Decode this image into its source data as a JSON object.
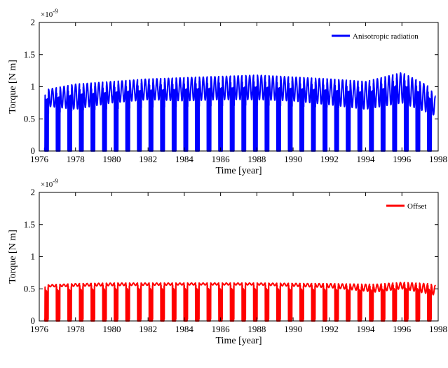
{
  "chart_data": [
    {
      "type": "line",
      "xlabel": "Time [year]",
      "ylabel": "Torque  [N m]",
      "exponent_label": "×10",
      "exponent_value": "-9",
      "xlim": [
        1976,
        1998
      ],
      "ylim": [
        0,
        2
      ],
      "xticks": [
        "1976",
        "1978",
        "1980",
        "1982",
        "1984",
        "1986",
        "1988",
        "1990",
        "1992",
        "1994",
        "1996",
        "1998"
      ],
      "yticks": [
        "0",
        "0.5",
        "1",
        "1.5",
        "2"
      ],
      "legend_placement": "top-right",
      "grid": false,
      "series": [
        {
          "name": "Anisotropic radiation",
          "color": "#0000ff",
          "start": 1976.3,
          "end": 1997.85,
          "period_years": 0.64,
          "zero_dip_fraction": 0.33,
          "envelope": {
            "x": [
              1976.3,
              1978,
              1980,
              1982,
              1984,
              1986,
              1988,
              1990,
              1992,
              1994,
              1996,
              1997.4,
              1997.85
            ],
            "max": [
              0.95,
              1.04,
              1.08,
              1.12,
              1.14,
              1.16,
              1.18,
              1.15,
              1.12,
              1.08,
              1.22,
              1.02,
              0.85
            ],
            "min": [
              0.7,
              0.65,
              0.75,
              0.8,
              0.78,
              0.8,
              0.8,
              0.78,
              0.72,
              0.65,
              0.75,
              0.6,
              0.55
            ]
          }
        }
      ]
    },
    {
      "type": "line",
      "xlabel": "Time [year]",
      "ylabel": "Torque  [N m]",
      "exponent_label": "×10",
      "exponent_value": "-9",
      "xlim": [
        1976,
        1998
      ],
      "ylim": [
        0,
        2
      ],
      "xticks": [
        "1976",
        "1978",
        "1980",
        "1982",
        "1984",
        "1986",
        "1988",
        "1990",
        "1992",
        "1994",
        "1996",
        "1998"
      ],
      "yticks": [
        "0",
        "0.5",
        "1",
        "1.5",
        "2"
      ],
      "legend_placement": "top-right",
      "grid": false,
      "series": [
        {
          "name": "Offset",
          "color": "#ff0000",
          "start": 1976.3,
          "end": 1997.85,
          "period_years": 0.64,
          "zero_dip_fraction": 0.3,
          "envelope": {
            "x": [
              1976.3,
              1978,
              1980,
              1984,
              1988,
              1992,
              1994.5,
              1996,
              1997.5,
              1997.85
            ],
            "max": [
              0.56,
              0.58,
              0.59,
              0.59,
              0.59,
              0.58,
              0.57,
              0.6,
              0.58,
              0.55
            ],
            "min": [
              0.53,
              0.54,
              0.55,
              0.56,
              0.56,
              0.52,
              0.45,
              0.5,
              0.42,
              0.4
            ]
          }
        }
      ]
    }
  ]
}
